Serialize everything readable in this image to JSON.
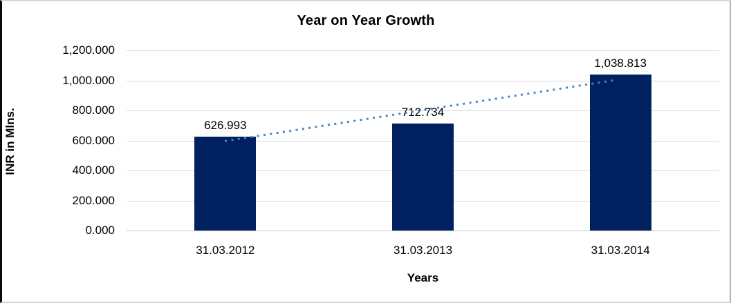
{
  "chart_data": {
    "type": "bar",
    "title": "Year on Year Growth",
    "xlabel": "Years",
    "ylabel": "INR in Mlns.",
    "categories": [
      "31.03.2012",
      "31.03.2013",
      "31.03.2014"
    ],
    "series": [
      {
        "name": "INR in Mlns.",
        "values": [
          626.993,
          712.734,
          1038.813
        ],
        "data_labels": [
          "626.993",
          "712.734",
          "1,038.813"
        ]
      }
    ],
    "ylim": [
      0,
      1200
    ],
    "yticks": [
      {
        "v": 0,
        "label": "0.000"
      },
      {
        "v": 200,
        "label": "200.000"
      },
      {
        "v": 400,
        "label": "400.000"
      },
      {
        "v": 600,
        "label": "600.000"
      },
      {
        "v": 800,
        "label": "800.000"
      },
      {
        "v": 1000,
        "label": "1,000.000"
      },
      {
        "v": 1200,
        "label": "1,200.000"
      }
    ],
    "grid": "horizontal",
    "legend": "none",
    "colors": {
      "bar": "#002060",
      "trendline": "#4F81BD",
      "gridline": "#d9d9d9",
      "text": "#000000"
    },
    "trendline": {
      "type": "linear",
      "style": "dotted"
    }
  }
}
